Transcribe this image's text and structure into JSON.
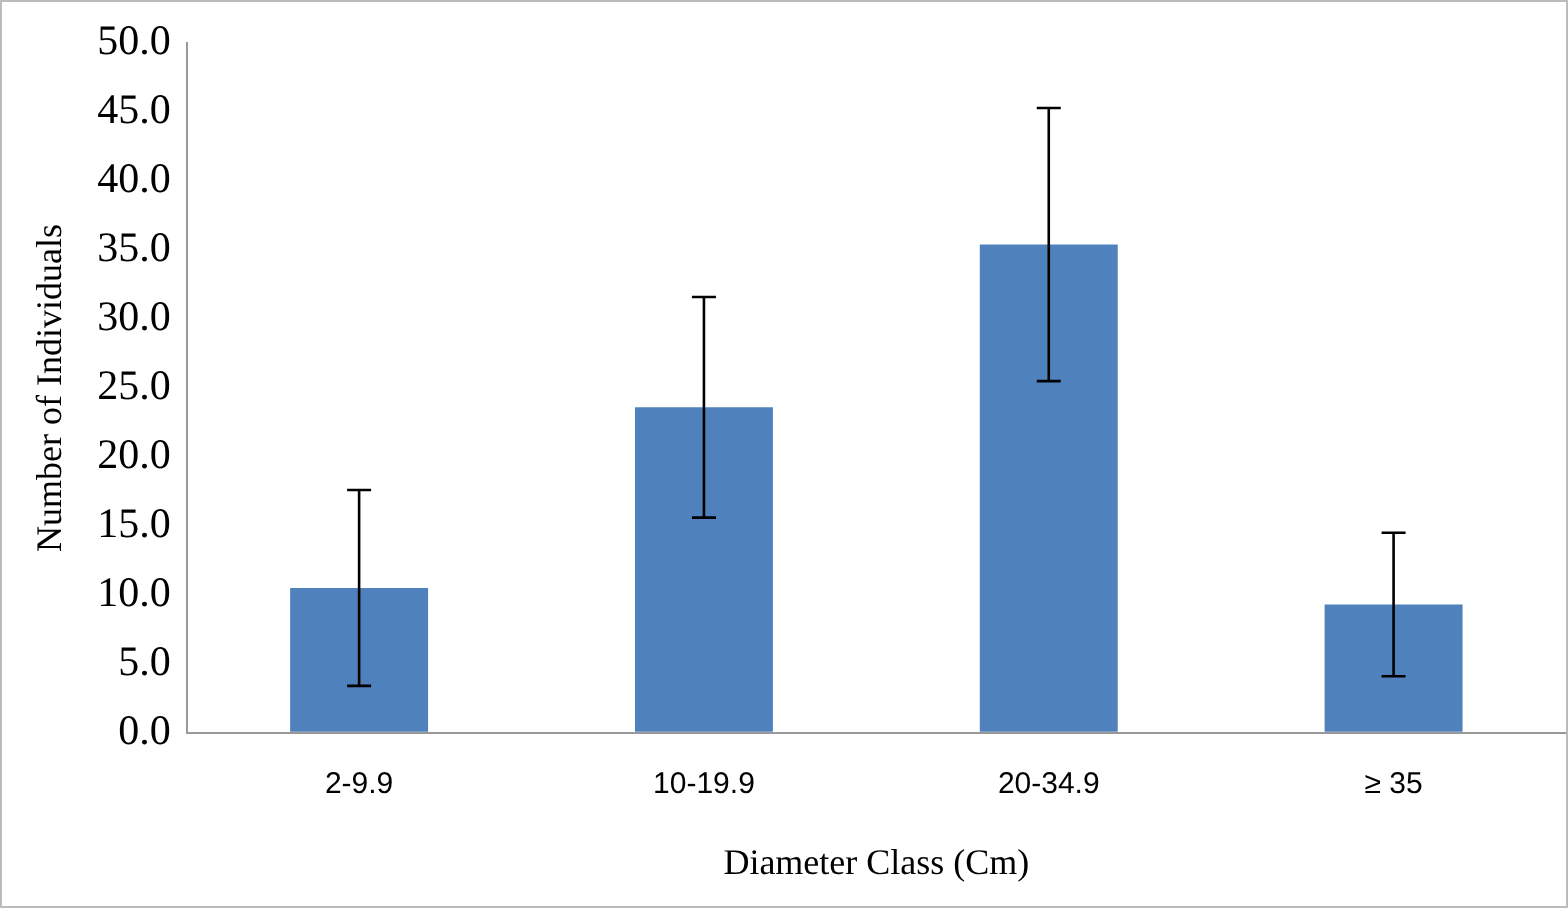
{
  "chart_data": {
    "type": "bar",
    "xlabel": "Diameter Class (Cm)",
    "ylabel": "Number of Individuals",
    "categories": [
      "2-9.9",
      "10-19.9",
      "20-34.9",
      "≥ 35"
    ],
    "values": [
      10.5,
      23.6,
      35.4,
      9.3
    ],
    "errors": [
      7.1,
      8.0,
      9.9,
      5.2
    ],
    "color": "#4f81bd",
    "ylim": [
      0,
      50
    ],
    "yticks": [
      {
        "value": 0,
        "label": "0.0"
      },
      {
        "value": 5,
        "label": "5.0"
      },
      {
        "value": 10,
        "label": "10.0"
      },
      {
        "value": 15,
        "label": "15.0"
      },
      {
        "value": 20,
        "label": "20.0"
      },
      {
        "value": 25,
        "label": "25.0"
      },
      {
        "value": 30,
        "label": "30.0"
      },
      {
        "value": 35,
        "label": "35.0"
      },
      {
        "value": 40,
        "label": "40.0"
      },
      {
        "value": 45,
        "label": "45.0"
      },
      {
        "value": 50,
        "label": "50.0"
      }
    ],
    "grid": false,
    "legend": false
  }
}
